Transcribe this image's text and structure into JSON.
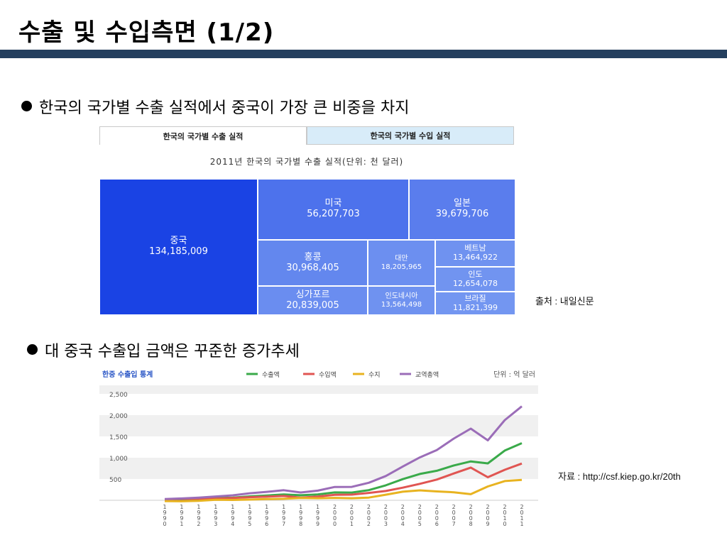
{
  "slide": {
    "title": "수출 및 수입측면 (1/2)",
    "bullet1": "한국의 국가별 수출 실적에서 중국이 가장 큰 비중을 차지",
    "bullet2": "대 중국 수출입 금액은 꾸준한 증가추세",
    "source1": "출처 : 내일신문",
    "source2": "자료 : http://csf.kiep.go.kr/20th"
  },
  "treemap": {
    "tabs": [
      "한국의 국가별 수출 실적",
      "한국의 국가별 수입 실적"
    ],
    "title": "2011년 한국의 국가별 수출 실적(단위: 천 달러)",
    "cells": [
      {
        "name": "중국",
        "value": "134,185,009",
        "color": "#1a43e4"
      },
      {
        "name": "미국",
        "value": "56,207,703",
        "color": "#4d72ec"
      },
      {
        "name": "일본",
        "value": "39,679,706",
        "color": "#5a7ded"
      },
      {
        "name": "홍콩",
        "value": "30,968,405",
        "color": "#6387ee"
      },
      {
        "name": "대만",
        "value": "18,205,965",
        "color": "#6c8ff0"
      },
      {
        "name": "베트남",
        "value": "13,464,922",
        "color": "#6f92f0"
      },
      {
        "name": "인도",
        "value": "12,654,078",
        "color": "#7194f0"
      },
      {
        "name": "싱가포르",
        "value": "20,839,005",
        "color": "#6a8df0"
      },
      {
        "name": "인도네시아",
        "value": "13,564,498",
        "color": "#6f92f0"
      },
      {
        "name": "브라질",
        "value": "11,821,399",
        "color": "#7396f1"
      }
    ]
  },
  "chart_data": {
    "type": "line",
    "title": "한중 수출입 통계",
    "unit": "단위 : 억 달러",
    "legend_position": "top",
    "x": [
      "1990",
      "1991",
      "1992",
      "1993",
      "1994",
      "1995",
      "1996",
      "1997",
      "1998",
      "1999",
      "2000",
      "2001",
      "2002",
      "2003",
      "2004",
      "2005",
      "2006",
      "2007",
      "2008",
      "2009",
      "2010",
      "2011"
    ],
    "ylim": [
      0,
      2700
    ],
    "yticks": [
      "500",
      "1,000",
      "1,500",
      "2,000",
      "2,500"
    ],
    "ytick_values": [
      500,
      1000,
      1500,
      2000,
      2500
    ],
    "series": [
      {
        "name": "수출액",
        "color": "#3aaa4a",
        "values": [
          5,
          10,
          26,
          51,
          62,
          91,
          114,
          136,
          119,
          137,
          185,
          182,
          238,
          351,
          497,
          619,
          694,
          819,
          913,
          867,
          1168,
          1342
        ]
      },
      {
        "name": "수입액",
        "color": "#e05552",
        "values": [
          23,
          34,
          37,
          39,
          54,
          74,
          85,
          101,
          64,
          89,
          128,
          133,
          174,
          219,
          296,
          386,
          486,
          630,
          769,
          542,
          716,
          864
        ]
      },
      {
        "name": "수지",
        "color": "#e8b320",
        "values": [
          -18,
          -24,
          -11,
          12,
          8,
          17,
          29,
          35,
          55,
          48,
          57,
          49,
          64,
          132,
          201,
          233,
          209,
          189,
          144,
          325,
          452,
          478
        ]
      },
      {
        "name": "교역총액",
        "color": "#9b6db8",
        "values": [
          28,
          44,
          63,
          90,
          116,
          165,
          199,
          237,
          183,
          226,
          313,
          315,
          412,
          570,
          793,
          1006,
          1180,
          1450,
          1683,
          1409,
          1884,
          2206
        ]
      }
    ]
  }
}
